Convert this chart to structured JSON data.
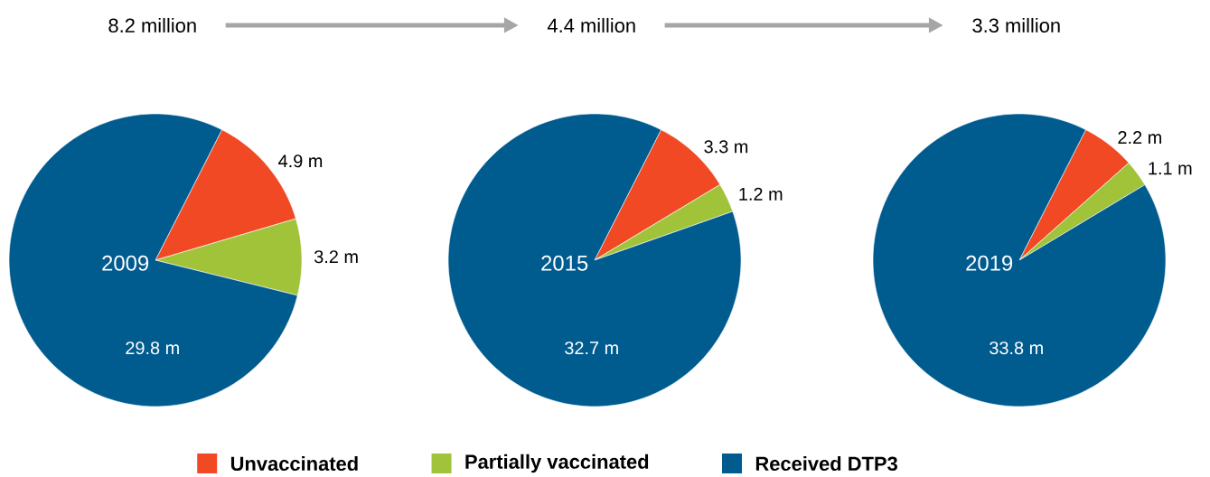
{
  "chart_data": [
    {
      "type": "pie",
      "title": "2009",
      "subtitle": "8.2 million",
      "categories": [
        null,
        null,
        null
      ],
      "values": [
        4.9,
        3.2,
        29.8
      ],
      "value_labels": [
        "4.9 m",
        "3.2 m",
        "29.8 m"
      ],
      "colors": [
        "#f04923",
        "#a1c33a",
        "#005b8f"
      ]
    },
    {
      "type": "pie",
      "title": "2015",
      "subtitle": "4.4 million",
      "categories": [
        "Unvaccinated",
        "Partially vaccinated",
        "Received DTP3"
      ],
      "values": [
        3.3,
        1.2,
        32.7
      ],
      "value_labels": [
        "3.3 m",
        "1.2 m",
        "32.7 m"
      ],
      "colors": [
        "#f04923",
        "#a1c33a",
        "#005b8f"
      ],
      "legend": "bottom"
    },
    {
      "type": "pie",
      "title": "2019",
      "subtitle": "3.3 million",
      "categories": [
        null,
        null,
        null
      ],
      "values": [
        2.2,
        1.1,
        33.8
      ],
      "value_labels": [
        "2.2 m",
        "1.1 m",
        "33.8 m"
      ],
      "colors": [
        "#f04923",
        "#a1c33a",
        "#005b8f"
      ]
    }
  ]
}
